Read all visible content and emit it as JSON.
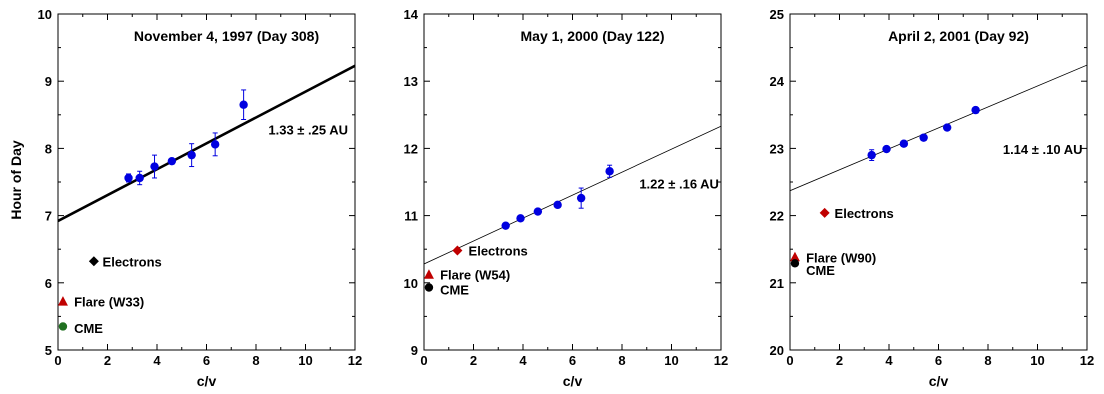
{
  "figure": {
    "ylabel": "Hour of Day"
  },
  "chart_data": [
    {
      "type": "scatter",
      "title": "November 4, 1997 (Day 308)",
      "xlabel": "c/v",
      "ylabel": "Hour of Day",
      "xlim": [
        0,
        12
      ],
      "ylim": [
        5,
        10
      ],
      "xticks": [
        0,
        2,
        4,
        6,
        8,
        10,
        12
      ],
      "yticks": [
        5,
        6,
        7,
        8,
        9,
        10
      ],
      "series": [
        {
          "kind": "points",
          "color": "#0000e0",
          "x": [
            2.85,
            3.3,
            3.9,
            4.6,
            5.4,
            6.35,
            7.5
          ],
          "y": [
            7.56,
            7.56,
            7.73,
            7.81,
            7.9,
            8.06,
            8.65
          ],
          "err": [
            0.06,
            0.1,
            0.17,
            0.04,
            0.17,
            0.17,
            0.22
          ]
        }
      ],
      "fit": {
        "x": [
          0,
          12
        ],
        "y": [
          6.92,
          9.23
        ],
        "width": "thick",
        "label": "1.33 ± .25 AU",
        "label_at": [
          8.5,
          8.28
        ]
      },
      "markers": [
        {
          "label": "Electrons",
          "shape": "diamond",
          "color": "#000000",
          "x": 1.45,
          "y": 6.32,
          "text_at": [
            1.8,
            6.32
          ]
        },
        {
          "label": "Flare (W33)",
          "shape": "triangle",
          "color": "#c00000",
          "x": 0.2,
          "y": 5.72,
          "text_at": [
            0.65,
            5.72
          ]
        },
        {
          "label": "CME",
          "shape": "circle",
          "color": "#207020",
          "x": 0.2,
          "y": 5.35,
          "text_at": [
            0.65,
            5.33
          ]
        }
      ]
    },
    {
      "type": "scatter",
      "title": "May 1, 2000 (Day 122)",
      "xlabel": "c/v",
      "ylabel": "",
      "xlim": [
        0,
        12
      ],
      "ylim": [
        9,
        14
      ],
      "xticks": [
        0,
        2,
        4,
        6,
        8,
        10,
        12
      ],
      "yticks": [
        9,
        10,
        11,
        12,
        13,
        14
      ],
      "series": [
        {
          "kind": "points",
          "color": "#0000e0",
          "x": [
            3.3,
            3.9,
            4.6,
            5.4,
            6.35,
            7.5
          ],
          "y": [
            10.85,
            10.96,
            11.06,
            11.16,
            11.26,
            11.66
          ],
          "err": [
            0.03,
            0.03,
            0.03,
            0.03,
            0.15,
            0.09
          ]
        }
      ],
      "fit": {
        "x": [
          0,
          12
        ],
        "y": [
          10.28,
          12.33
        ],
        "width": "thin",
        "label": "1.22 ± .16 AU",
        "label_at": [
          8.7,
          11.48
        ]
      },
      "markers": [
        {
          "label": "Electrons",
          "shape": "diamond",
          "color": "#c00000",
          "x": 1.35,
          "y": 10.48,
          "text_at": [
            1.8,
            10.48
          ]
        },
        {
          "label": "Flare (W54)",
          "shape": "triangle",
          "color": "#c00000",
          "x": 0.2,
          "y": 10.12,
          "text_at": [
            0.65,
            10.12
          ]
        },
        {
          "label": "CME",
          "shape": "circle",
          "color": "#000000",
          "x": 0.2,
          "y": 9.93,
          "text_at": [
            0.65,
            9.9
          ]
        }
      ]
    },
    {
      "type": "scatter",
      "title": "April 2, 2001 (Day 92)",
      "xlabel": "c/v",
      "ylabel": "",
      "xlim": [
        0,
        12
      ],
      "ylim": [
        20,
        25
      ],
      "xticks": [
        0,
        2,
        4,
        6,
        8,
        10,
        12
      ],
      "yticks": [
        20,
        21,
        22,
        23,
        24,
        25
      ],
      "series": [
        {
          "kind": "points",
          "color": "#0000e0",
          "x": [
            3.3,
            3.9,
            4.6,
            5.4,
            6.35,
            7.5
          ],
          "y": [
            22.9,
            22.99,
            23.07,
            23.16,
            23.31,
            23.57
          ],
          "err": [
            0.08,
            0.03,
            0.03,
            0.03,
            0.03,
            0.03
          ]
        }
      ],
      "fit": {
        "x": [
          0,
          12
        ],
        "y": [
          22.37,
          24.24
        ],
        "width": "thin",
        "label": "1.14 ± .10 AU",
        "label_at": [
          8.6,
          22.99
        ]
      },
      "markers": [
        {
          "label": "Electrons",
          "shape": "diamond",
          "color": "#c00000",
          "x": 1.4,
          "y": 22.04,
          "text_at": [
            1.8,
            22.04
          ]
        },
        {
          "label": "Flare (W90)",
          "shape": "triangle",
          "color": "#c00000",
          "x": 0.2,
          "y": 21.38,
          "text_at": [
            0.65,
            21.38
          ]
        },
        {
          "label": "CME",
          "shape": "circle",
          "color": "#000000",
          "x": 0.2,
          "y": 21.29,
          "text_at": [
            0.65,
            21.19
          ]
        }
      ]
    }
  ]
}
